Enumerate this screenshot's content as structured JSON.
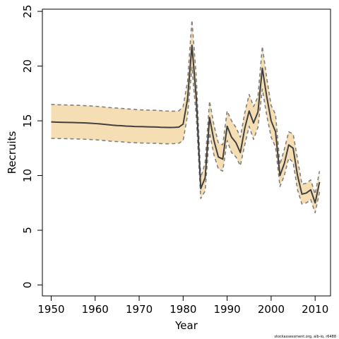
{
  "chart_data": {
    "type": "line",
    "title": "",
    "xlabel": "Year",
    "ylabel": "Recruits",
    "xlim": [
      1948,
      2013.5
    ],
    "ylim": [
      -1,
      25.2
    ],
    "xticks": [
      1950,
      1960,
      1970,
      1980,
      1990,
      2000,
      2010
    ],
    "yticks": [
      0,
      5,
      10,
      15,
      20,
      25
    ],
    "grid": false,
    "legend": "none",
    "x": [
      1950,
      1951,
      1952,
      1953,
      1954,
      1955,
      1956,
      1957,
      1958,
      1959,
      1960,
      1961,
      1962,
      1963,
      1964,
      1965,
      1966,
      1967,
      1968,
      1969,
      1970,
      1971,
      1972,
      1973,
      1974,
      1975,
      1976,
      1977,
      1978,
      1979,
      1980,
      1981,
      1982,
      1983,
      1984,
      1985,
      1986,
      1987,
      1988,
      1989,
      1990,
      1991,
      1992,
      1993,
      1994,
      1995,
      1996,
      1997,
      1998,
      1999,
      2000,
      2001,
      2002,
      2003,
      2004,
      2005,
      2006,
      2007,
      2008,
      2009,
      2010,
      2011
    ],
    "series": [
      {
        "role": "estimate",
        "values": [
          14.9,
          14.88,
          14.87,
          14.86,
          14.85,
          14.84,
          14.83,
          14.82,
          14.8,
          14.78,
          14.75,
          14.72,
          14.68,
          14.64,
          14.6,
          14.57,
          14.55,
          14.52,
          14.5,
          14.48,
          14.47,
          14.46,
          14.45,
          14.44,
          14.43,
          14.41,
          14.4,
          14.39,
          14.4,
          14.42,
          14.7,
          17.0,
          21.9,
          17.0,
          8.8,
          9.8,
          15.3,
          13.2,
          11.7,
          11.5,
          14.5,
          13.5,
          13.0,
          12.1,
          14.3,
          15.9,
          14.8,
          15.8,
          19.8,
          17.2,
          15.0,
          14.0,
          10.0,
          11.1,
          12.8,
          12.5,
          10.0,
          8.3,
          8.4,
          8.7,
          7.5,
          9.4
        ]
      },
      {
        "role": "upper",
        "values": [
          16.5,
          16.48,
          16.46,
          16.45,
          16.44,
          16.43,
          16.42,
          16.4,
          16.38,
          16.36,
          16.33,
          16.3,
          16.26,
          16.22,
          16.19,
          16.16,
          16.13,
          16.1,
          16.07,
          16.04,
          16.0,
          15.99,
          15.98,
          15.97,
          15.96,
          15.93,
          15.9,
          15.88,
          15.88,
          15.9,
          16.3,
          18.6,
          24.2,
          18.9,
          9.8,
          11.2,
          16.8,
          14.6,
          13.0,
          12.8,
          15.9,
          15.0,
          14.4,
          13.5,
          15.7,
          17.4,
          16.3,
          17.2,
          21.8,
          18.9,
          16.4,
          15.6,
          11.0,
          12.4,
          14.0,
          13.8,
          11.5,
          9.2,
          9.3,
          9.6,
          8.3,
          10.4
        ]
      },
      {
        "role": "lower",
        "values": [
          13.4,
          13.39,
          13.38,
          13.37,
          13.36,
          13.35,
          13.34,
          13.33,
          13.31,
          13.29,
          13.27,
          13.24,
          13.2,
          13.16,
          13.12,
          13.1,
          13.08,
          13.05,
          13.02,
          13.0,
          12.98,
          12.97,
          12.96,
          12.95,
          12.94,
          12.92,
          12.9,
          12.9,
          12.92,
          12.95,
          13.2,
          15.5,
          19.9,
          15.3,
          7.9,
          8.6,
          13.9,
          11.9,
          10.6,
          10.4,
          13.2,
          12.1,
          11.7,
          10.9,
          12.8,
          14.5,
          13.3,
          14.4,
          17.9,
          15.5,
          13.5,
          12.6,
          9.0,
          10.0,
          11.6,
          11.2,
          8.7,
          7.4,
          7.5,
          7.8,
          6.6,
          8.5
        ]
      }
    ]
  },
  "colors": {
    "band_fill": "#f5deb3",
    "estimate_line": "#404040",
    "interval_line": "#808080",
    "axis": "#000000"
  },
  "footer": {
    "credit": "stockassessment.org, alb-io, r6488"
  }
}
